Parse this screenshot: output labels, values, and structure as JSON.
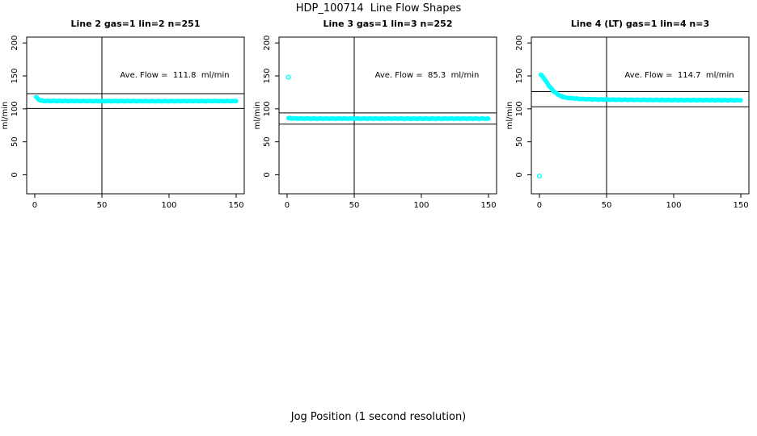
{
  "page": {
    "title": "HDP_100714  Line Flow Shapes",
    "xlabel": "Jog Position (1 second resolution)"
  },
  "colors": {
    "points": "#00FFFF",
    "axis": "#000000",
    "background": "#FFFFFF",
    "text": "#000000"
  },
  "chart_data": [
    {
      "type": "scatter",
      "title": "Line 2 gas=1 lin=2 n=251",
      "annotation": "Ave. Flow =  111.8  ml/min",
      "ave_flow_ml_min": 111.8,
      "n": 251,
      "ylabel": "ml/min",
      "x_ticks": [
        0,
        50,
        100,
        150
      ],
      "y_ticks": [
        0,
        50,
        100,
        150,
        200
      ],
      "xlim": [
        -6,
        156
      ],
      "ylim": [
        -28.8,
        208.8
      ],
      "vline_x": 50,
      "hlines": [
        123.0,
        100.6
      ],
      "points": [
        [
          1,
          118
        ],
        [
          2,
          115.8
        ],
        [
          3,
          114.2
        ],
        [
          4,
          113.2
        ],
        [
          5,
          112.6
        ],
        [
          6,
          112.3
        ],
        [
          8,
          112.1
        ],
        [
          10,
          112
        ],
        [
          15,
          112
        ],
        [
          20,
          112
        ],
        [
          25,
          111.9
        ],
        [
          30,
          111.9
        ],
        [
          40,
          111.8
        ],
        [
          50,
          111.8
        ],
        [
          60,
          111.8
        ],
        [
          70,
          111.8
        ],
        [
          80,
          111.7
        ],
        [
          90,
          111.7
        ],
        [
          100,
          111.7
        ],
        [
          110,
          111.8
        ],
        [
          120,
          111.8
        ],
        [
          130,
          111.8
        ],
        [
          140,
          111.8
        ],
        [
          150,
          111.8
        ]
      ],
      "outliers": []
    },
    {
      "type": "scatter",
      "title": "Line 3 gas=1 lin=3 n=252",
      "annotation": "Ave. Flow =  85.3  ml/min",
      "ave_flow_ml_min": 85.3,
      "n": 252,
      "ylabel": "ml/min",
      "x_ticks": [
        0,
        50,
        100,
        150
      ],
      "y_ticks": [
        0,
        50,
        100,
        150,
        200
      ],
      "xlim": [
        -6,
        156
      ],
      "ylim": [
        -28.8,
        208.8
      ],
      "vline_x": 50,
      "hlines": [
        93.8,
        76.8
      ],
      "points": [
        [
          1,
          86
        ],
        [
          2,
          85.8
        ],
        [
          3,
          85.6
        ],
        [
          5,
          85.5
        ],
        [
          10,
          85.4
        ],
        [
          20,
          85.3
        ],
        [
          30,
          85.3
        ],
        [
          40,
          85.3
        ],
        [
          50,
          85.3
        ],
        [
          60,
          85.3
        ],
        [
          70,
          85.3
        ],
        [
          80,
          85.3
        ],
        [
          90,
          85.2
        ],
        [
          100,
          85.2
        ],
        [
          110,
          85.2
        ],
        [
          120,
          85.2
        ],
        [
          130,
          85.2
        ],
        [
          140,
          85.2
        ],
        [
          150,
          85.2
        ]
      ],
      "outliers": [
        [
          1,
          148
        ]
      ]
    },
    {
      "type": "scatter",
      "title": "Line 4 (LT) gas=1 lin=4 n=3",
      "annotation": "Ave. Flow =  114.7  ml/min",
      "ave_flow_ml_min": 114.7,
      "n": 3,
      "ylabel": "ml/min",
      "x_ticks": [
        0,
        50,
        100,
        150
      ],
      "y_ticks": [
        0,
        50,
        100,
        150,
        200
      ],
      "xlim": [
        -6,
        156
      ],
      "ylim": [
        -28.8,
        208.8
      ],
      "vline_x": 50,
      "hlines": [
        126.2,
        103.2
      ],
      "points": [
        [
          1,
          152
        ],
        [
          2,
          150
        ],
        [
          3,
          147.5
        ],
        [
          4,
          144.5
        ],
        [
          5,
          141.5
        ],
        [
          6,
          138.5
        ],
        [
          7,
          135.5
        ],
        [
          8,
          133
        ],
        [
          9,
          130.5
        ],
        [
          10,
          128
        ],
        [
          11,
          126
        ],
        [
          12,
          124.5
        ],
        [
          13,
          123
        ],
        [
          14,
          121.5
        ],
        [
          15,
          120.5
        ],
        [
          16,
          119.5
        ],
        [
          17,
          118.5
        ],
        [
          18,
          118
        ],
        [
          19,
          117.5
        ],
        [
          20,
          117
        ],
        [
          22,
          116.5
        ],
        [
          25,
          116
        ],
        [
          28,
          115.5
        ],
        [
          32,
          115
        ],
        [
          36,
          114.8
        ],
        [
          40,
          114.5
        ],
        [
          45,
          114.3
        ],
        [
          50,
          114.2
        ],
        [
          55,
          114
        ],
        [
          60,
          113.9
        ],
        [
          70,
          113.7
        ],
        [
          80,
          113.6
        ],
        [
          90,
          113.5
        ],
        [
          100,
          113.4
        ],
        [
          110,
          113.3
        ],
        [
          120,
          113.3
        ],
        [
          130,
          113.2
        ],
        [
          140,
          113.1
        ],
        [
          150,
          113
        ]
      ],
      "outliers": [
        [
          0,
          -2
        ]
      ]
    }
  ]
}
